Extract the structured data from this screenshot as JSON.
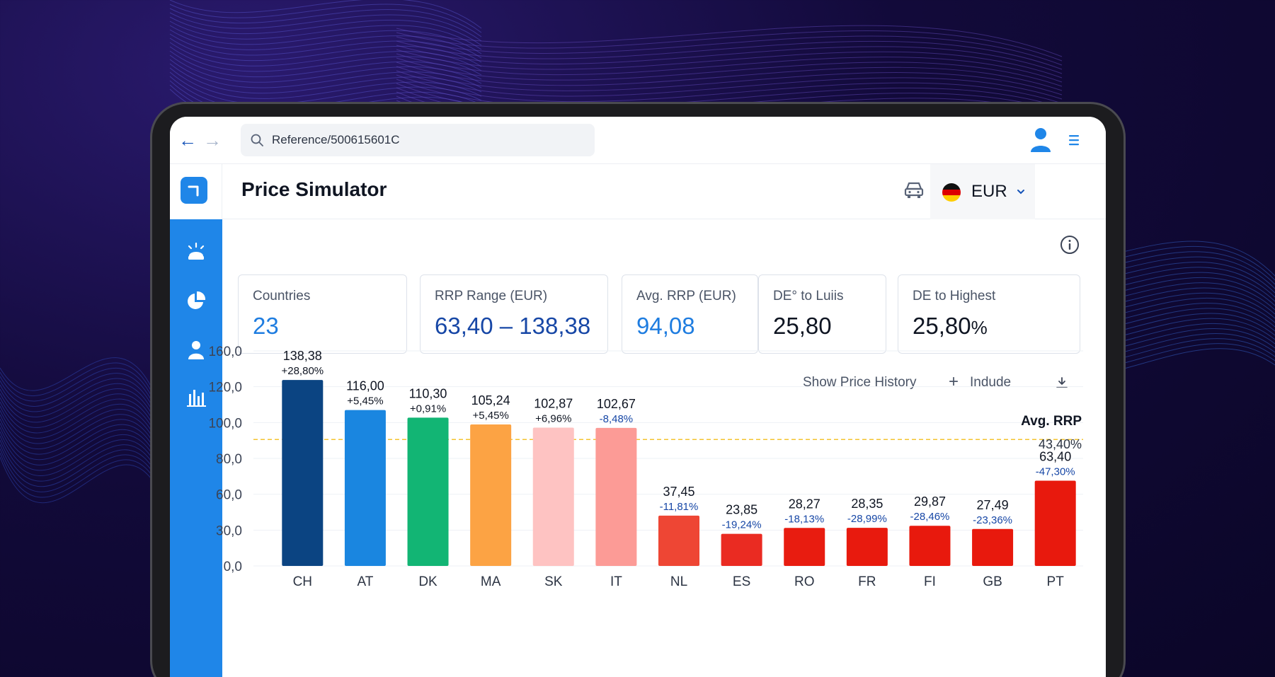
{
  "search": {
    "value": "Reference/500615601C"
  },
  "header": {
    "title": "Price Simulator",
    "currency": "EUR"
  },
  "cards": [
    {
      "label": "Countries",
      "value": "23"
    },
    {
      "label": "RRP Range (EUR)",
      "value": "63,40 – 138,38"
    },
    {
      "label": "Avg. RRP (EUR)",
      "value": "94,08"
    },
    {
      "label": "DE° to Luiis",
      "value": "25,80"
    },
    {
      "label": "DE to Highest",
      "value": "25,80",
      "unit": "%"
    }
  ],
  "toolbar": {
    "history": "Show Price History",
    "include": "Indude"
  },
  "icons": [
    "back-arrow-icon",
    "forward-arrow-icon",
    "search-icon",
    "user-icon",
    "menu-icon",
    "logo-icon",
    "lightbulb-icon",
    "pie-chart-icon",
    "person-icon",
    "bar-chart-icon",
    "car-icon",
    "germany-flag-icon",
    "chevron-down-icon",
    "info-icon",
    "plus-icon",
    "download-icon"
  ],
  "colors": {
    "brand": "#1f86e8",
    "avg_line": "#f4c430"
  },
  "chart_data": {
    "type": "bar",
    "categories": [
      "CH",
      "AT",
      "DK",
      "MA",
      "SK",
      "IT",
      "NL",
      "ES",
      "RO",
      "FR",
      "FI",
      "GB",
      "PT"
    ],
    "values": [
      138.38,
      116.0,
      110.3,
      105.24,
      102.87,
      102.67,
      37.45,
      23.85,
      28.27,
      28.35,
      29.87,
      27.49,
      63.4
    ],
    "value_labels": [
      "138,38",
      "116,00",
      "110,30",
      "105,24",
      "102,87",
      "102,67",
      "37,45",
      "23,85",
      "28,27",
      "28,35",
      "29,87",
      "27,49",
      "63,40"
    ],
    "change_labels": [
      "+28,80%",
      "+5,45%",
      "+0,91%",
      "+5,45%",
      "+6,96%",
      "-8,48%",
      "-11,81%",
      "-19,24%",
      "-18,13%",
      "-28,99%",
      "-28,46%",
      "-23,36%",
      "-47,30%"
    ],
    "bar_colors": [
      "#0b4482",
      "#1a86e0",
      "#12b574",
      "#fca344",
      "#fec3c2",
      "#fc9b96",
      "#ee4634",
      "#ea2b22",
      "#e81c10",
      "#e81a0e",
      "#e8190d",
      "#e8190d",
      "#e8190d"
    ],
    "y_ticks": [
      "160,0",
      "120,0",
      "100,0",
      "80,0",
      "60,0",
      "30,0",
      "0,0"
    ],
    "avg_label": "Avg. RRP",
    "avg_pct": "43,40%",
    "grid": true
  }
}
